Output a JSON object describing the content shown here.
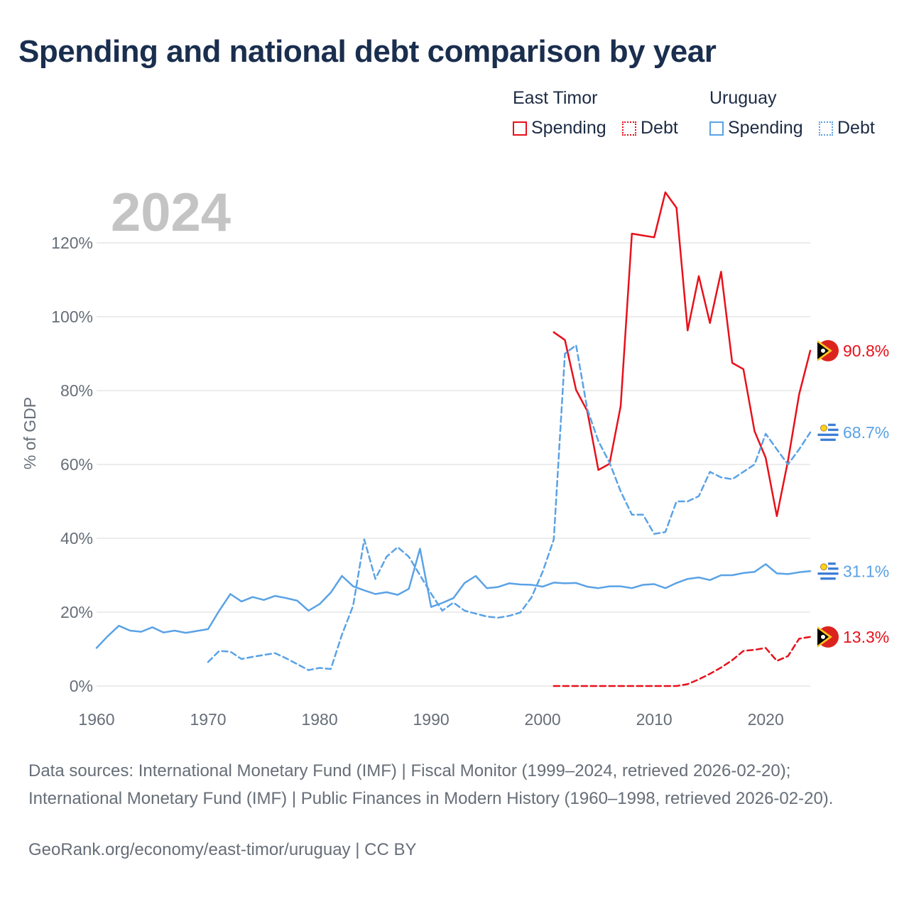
{
  "title": "Spending and national debt comparison by year",
  "legend": {
    "groups": [
      {
        "country": "East Timor",
        "items": [
          "Spending",
          "Debt"
        ],
        "color": "#e8101a"
      },
      {
        "country": "Uruguay",
        "items": [
          "Spending",
          "Debt"
        ],
        "color": "#5aa2e6"
      }
    ]
  },
  "year_label": "2024",
  "sources_text": "Data sources: International Monetary Fund (IMF) | Fiscal Monitor (1999–2024, retrieved 2026-02-20); International Monetary Fund (IMF) | Public Finances in Modern History (1960–1998, retrieved 2026-02-20).",
  "credit": "GeoRank.org/economy/east-timor/uruguay | CC BY",
  "chart_data": {
    "type": "line",
    "ylabel": "% of GDP",
    "xlabel": "",
    "xlim": [
      1960,
      2024
    ],
    "ylim": [
      0,
      130
    ],
    "x_ticks": [
      "1960",
      "1970",
      "1980",
      "1990",
      "2000",
      "2010",
      "2020"
    ],
    "y_ticks": [
      "0%",
      "20%",
      "40%",
      "60%",
      "80%",
      "100%",
      "120%"
    ],
    "y_tick_values": [
      0,
      20,
      40,
      60,
      80,
      100,
      120
    ],
    "grid": true,
    "series": [
      {
        "name": "East Timor Spending",
        "country": "East Timor",
        "color": "#e8101a",
        "dash": false,
        "x": [
          2001,
          2002,
          2003,
          2004,
          2005,
          2006,
          2007,
          2008,
          2009,
          2010,
          2011,
          2012,
          2013,
          2014,
          2015,
          2016,
          2017,
          2018,
          2019,
          2020,
          2021,
          2022,
          2023,
          2024
        ],
        "y": [
          95.8,
          93.7,
          80.2,
          74.5,
          58.5,
          60.2,
          75.8,
          122.5,
          122.0,
          121.5,
          133.7,
          129.5,
          96.3,
          111.0,
          98.3,
          112.2,
          87.5,
          85.8,
          69.0,
          61.8,
          46.0,
          61.0,
          79.0,
          90.8
        ],
        "end_label": "90.8%"
      },
      {
        "name": "East Timor Debt",
        "country": "East Timor",
        "color": "#e8101a",
        "dash": true,
        "x": [
          2001,
          2002,
          2003,
          2004,
          2005,
          2006,
          2007,
          2008,
          2009,
          2010,
          2011,
          2012,
          2013,
          2014,
          2015,
          2016,
          2017,
          2018,
          2019,
          2020,
          2021,
          2022,
          2023,
          2024
        ],
        "y": [
          0,
          0,
          0,
          0,
          0,
          0,
          0,
          0,
          0,
          0,
          0,
          0,
          0.5,
          1.8,
          3.3,
          5.0,
          7.0,
          9.5,
          9.8,
          10.3,
          6.8,
          8.1,
          12.8,
          13.3
        ],
        "end_label": "13.3%"
      },
      {
        "name": "Uruguay Spending",
        "country": "Uruguay",
        "color": "#5aa2e6",
        "dash": false,
        "x": [
          1960,
          1961,
          1962,
          1963,
          1964,
          1965,
          1966,
          1967,
          1968,
          1969,
          1970,
          1971,
          1972,
          1973,
          1974,
          1975,
          1976,
          1977,
          1978,
          1979,
          1980,
          1981,
          1982,
          1983,
          1984,
          1985,
          1986,
          1987,
          1988,
          1989,
          1990,
          1991,
          1992,
          1993,
          1994,
          1995,
          1996,
          1997,
          1998,
          1999,
          2000,
          2001,
          2002,
          2003,
          2004,
          2005,
          2006,
          2007,
          2008,
          2009,
          2010,
          2011,
          2012,
          2013,
          2014,
          2015,
          2016,
          2017,
          2018,
          2019,
          2020,
          2021,
          2022,
          2023,
          2024
        ],
        "y": [
          10.3,
          13.5,
          16.3,
          15.0,
          14.7,
          15.9,
          14.5,
          15.0,
          14.4,
          14.9,
          15.4,
          20.4,
          24.9,
          22.9,
          24.1,
          23.3,
          24.4,
          23.8,
          23.1,
          20.4,
          22.2,
          25.3,
          29.8,
          27.0,
          25.9,
          24.9,
          25.4,
          24.7,
          26.3,
          37.2,
          21.4,
          22.5,
          23.8,
          27.9,
          29.8,
          26.5,
          26.8,
          27.8,
          27.5,
          27.4,
          26.9,
          28.0,
          27.8,
          27.9,
          26.9,
          26.5,
          27.0,
          27.0,
          26.5,
          27.4,
          27.6,
          26.5,
          27.9,
          29.0,
          29.4,
          28.7,
          30.0,
          30.0,
          30.6,
          30.9,
          33.0,
          30.5,
          30.3,
          30.8,
          31.1
        ],
        "end_label": "31.1%"
      },
      {
        "name": "Uruguay Debt",
        "country": "Uruguay",
        "color": "#5aa2e6",
        "dash": true,
        "x": [
          1970,
          1971,
          1972,
          1973,
          1974,
          1975,
          1976,
          1977,
          1978,
          1979,
          1980,
          1981,
          1982,
          1983,
          1984,
          1985,
          1986,
          1987,
          1988,
          1989,
          1990,
          1991,
          1992,
          1993,
          1994,
          1995,
          1996,
          1997,
          1998,
          1999,
          2000,
          2001,
          2002,
          2003,
          2004,
          2005,
          2006,
          2007,
          2008,
          2009,
          2010,
          2011,
          2012,
          2013,
          2014,
          2015,
          2016,
          2017,
          2018,
          2019,
          2020,
          2021,
          2022,
          2023,
          2024
        ],
        "y": [
          6.5,
          9.5,
          9.3,
          7.3,
          7.9,
          8.4,
          8.9,
          7.5,
          5.9,
          4.3,
          4.9,
          4.6,
          13.9,
          21.7,
          39.7,
          29.0,
          35.0,
          37.6,
          35.0,
          30.0,
          25.0,
          20.4,
          22.6,
          20.4,
          19.6,
          18.8,
          18.5,
          19.0,
          19.9,
          24.0,
          30.9,
          39.7,
          90.0,
          92.3,
          75.0,
          66.3,
          60.5,
          52.7,
          46.4,
          46.4,
          41.2,
          41.7,
          50.0,
          50.0,
          51.4,
          58.0,
          56.5,
          56.0,
          58.0,
          60.0,
          68.3,
          64.1,
          60.0,
          64.1,
          68.7
        ],
        "end_label": "68.7%"
      }
    ]
  }
}
